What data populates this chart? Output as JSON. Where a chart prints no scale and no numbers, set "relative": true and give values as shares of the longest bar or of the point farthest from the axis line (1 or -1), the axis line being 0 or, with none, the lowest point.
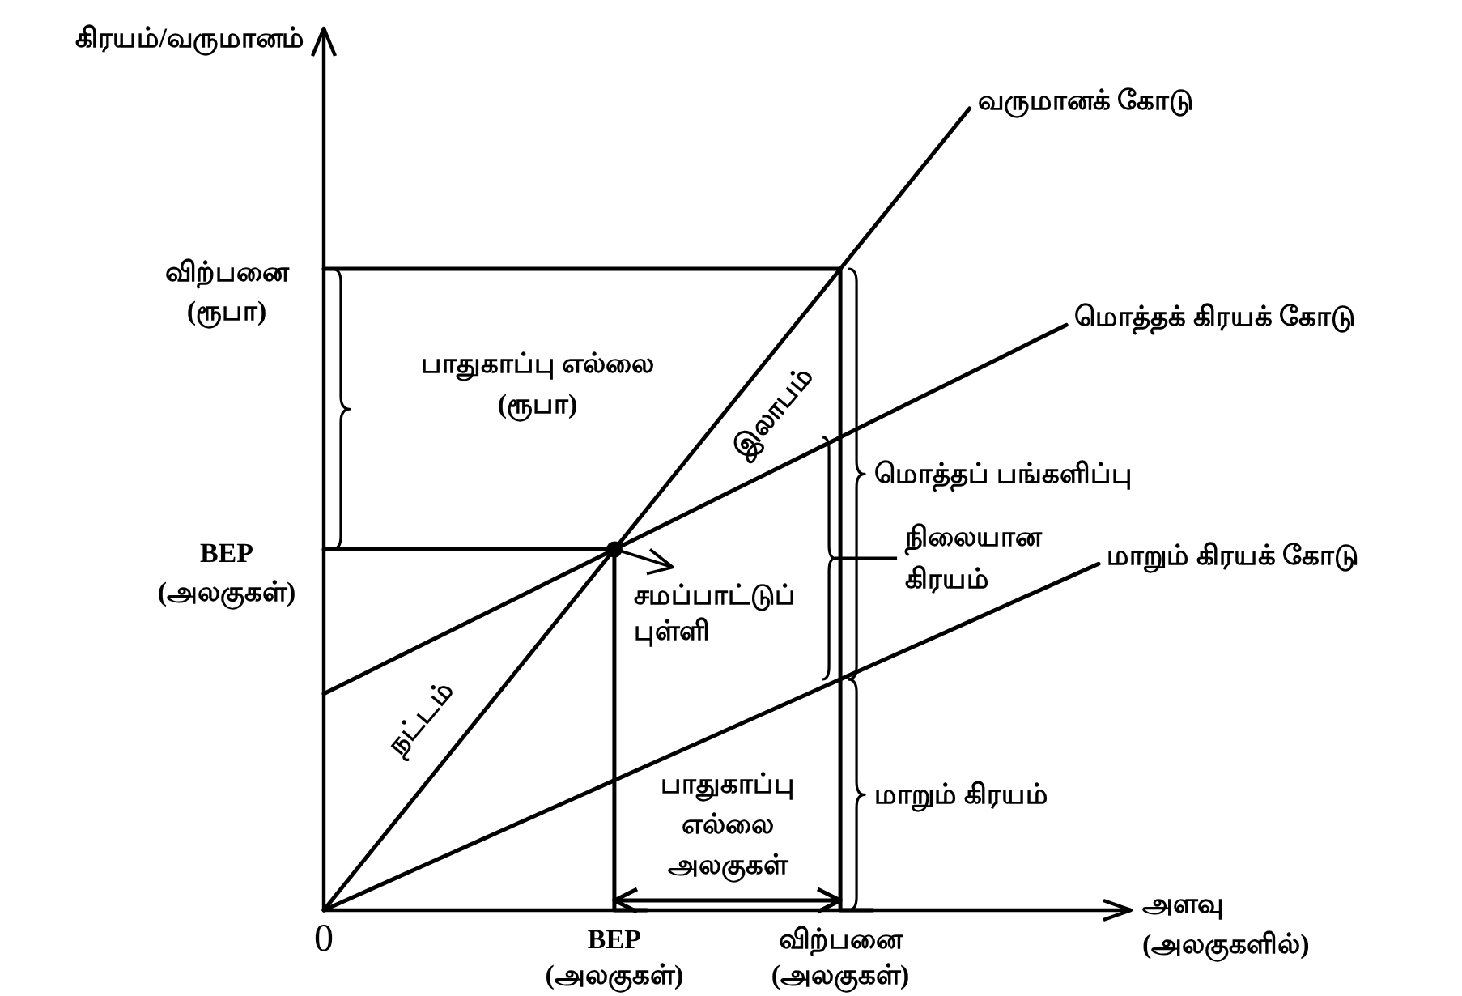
{
  "chart_data": {
    "type": "line",
    "relative": true,
    "xlabel": "அளவு\n(அலகுகளில்)",
    "ylabel": "கிரயம்/வருமானம்",
    "categories": [
      "0",
      null,
      null,
      null,
      null,
      null,
      null,
      null,
      null,
      "BEP\n(அலகுகள்)",
      null,
      null,
      null,
      null,
      null,
      null,
      "விற்பனை\n(அலகுகள்)",
      null,
      null,
      null,
      null,
      null,
      null,
      null,
      null,
      null
    ],
    "series": [
      {
        "name": "வருமானக் கோடு",
        "color": "#000000",
        "values": [
          0,
          0.05,
          0.1,
          0.15,
          0.2,
          0.25,
          0.3,
          0.35,
          0.4,
          0.45,
          0.5,
          0.55,
          0.6,
          0.65,
          0.7,
          0.75,
          0.8,
          0.85,
          0.9,
          0.95,
          1,
          null,
          null,
          null,
          null,
          null
        ]
      },
      {
        "name": "மொத்தக் கிரயக் கோடு",
        "color": "#000000",
        "values": [
          0.27,
          0.29,
          0.31,
          0.33,
          0.35,
          0.37,
          0.39,
          0.41,
          0.43,
          0.45,
          0.47,
          0.49,
          0.51,
          0.53,
          0.55,
          0.57,
          0.59,
          0.61,
          0.63,
          0.65,
          0.67,
          0.69,
          0.71,
          0.73,
          null,
          null
        ]
      },
      {
        "name": "மாறும் கிரயக் கோடு",
        "color": "#000000",
        "values": [
          0,
          0.018,
          0.036,
          0.054,
          0.072,
          0.09,
          0.108,
          0.126,
          0.144,
          0.162,
          0.18,
          0.198,
          0.216,
          0.234,
          0.252,
          0.27,
          0.288,
          0.306,
          0.324,
          0.342,
          0.36,
          0.378,
          0.396,
          0.414,
          0.432,
          null
        ]
      },
      {
        "type": "step",
        "color": "#000000",
        "values": [
          0.45,
          0.45,
          0.45,
          0.45,
          0.45,
          0.45,
          0.45,
          0.45,
          0.45,
          0.45,
          0,
          null,
          null,
          null,
          null,
          null,
          null,
          null,
          null,
          null,
          null,
          null,
          null,
          null,
          null,
          null
        ]
      },
      {
        "type": "step",
        "color": "#000000",
        "values": [
          0.8,
          0.8,
          0.8,
          0.8,
          0.8,
          0.8,
          0.8,
          0.8,
          0.8,
          0.8,
          0.8,
          0.8,
          0.8,
          0.8,
          0.8,
          0.8,
          0.8,
          0,
          null,
          null,
          null,
          null,
          null,
          null,
          null,
          null
        ]
      },
      {
        "type": "scatter",
        "color": "#000000",
        "values": [
          null,
          null,
          null,
          null,
          null,
          null,
          null,
          null,
          null,
          0.45,
          null,
          null,
          null,
          null,
          null,
          null,
          null,
          null,
          null,
          null,
          null,
          null,
          null,
          null,
          null,
          null
        ]
      }
    ],
    "annotations": [
      {
        "text": "விற்பனை\n(ரூபா)",
        "x": "0",
        "y": 0.8
      },
      {
        "text": "BEP\n(அலகுகள்)",
        "x": "0",
        "y": 0.45
      },
      {
        "text": "சமப்பாட்டுப்\nபுள்ளி",
        "x": "BEP\n(அலகுகள்)",
        "y": 0.45
      },
      "பாதுகாப்பு எல்லை\n(ரூபா)",
      "இலாபம்",
      "மொத்தப் பங்களிப்பு",
      "நிலையான\nகிரயம்",
      "நட்டம்",
      "பாதுகாப்பு\nஎல்லை\nஅலகுகள்",
      "மாறும் கிரயம்"
    ]
  }
}
